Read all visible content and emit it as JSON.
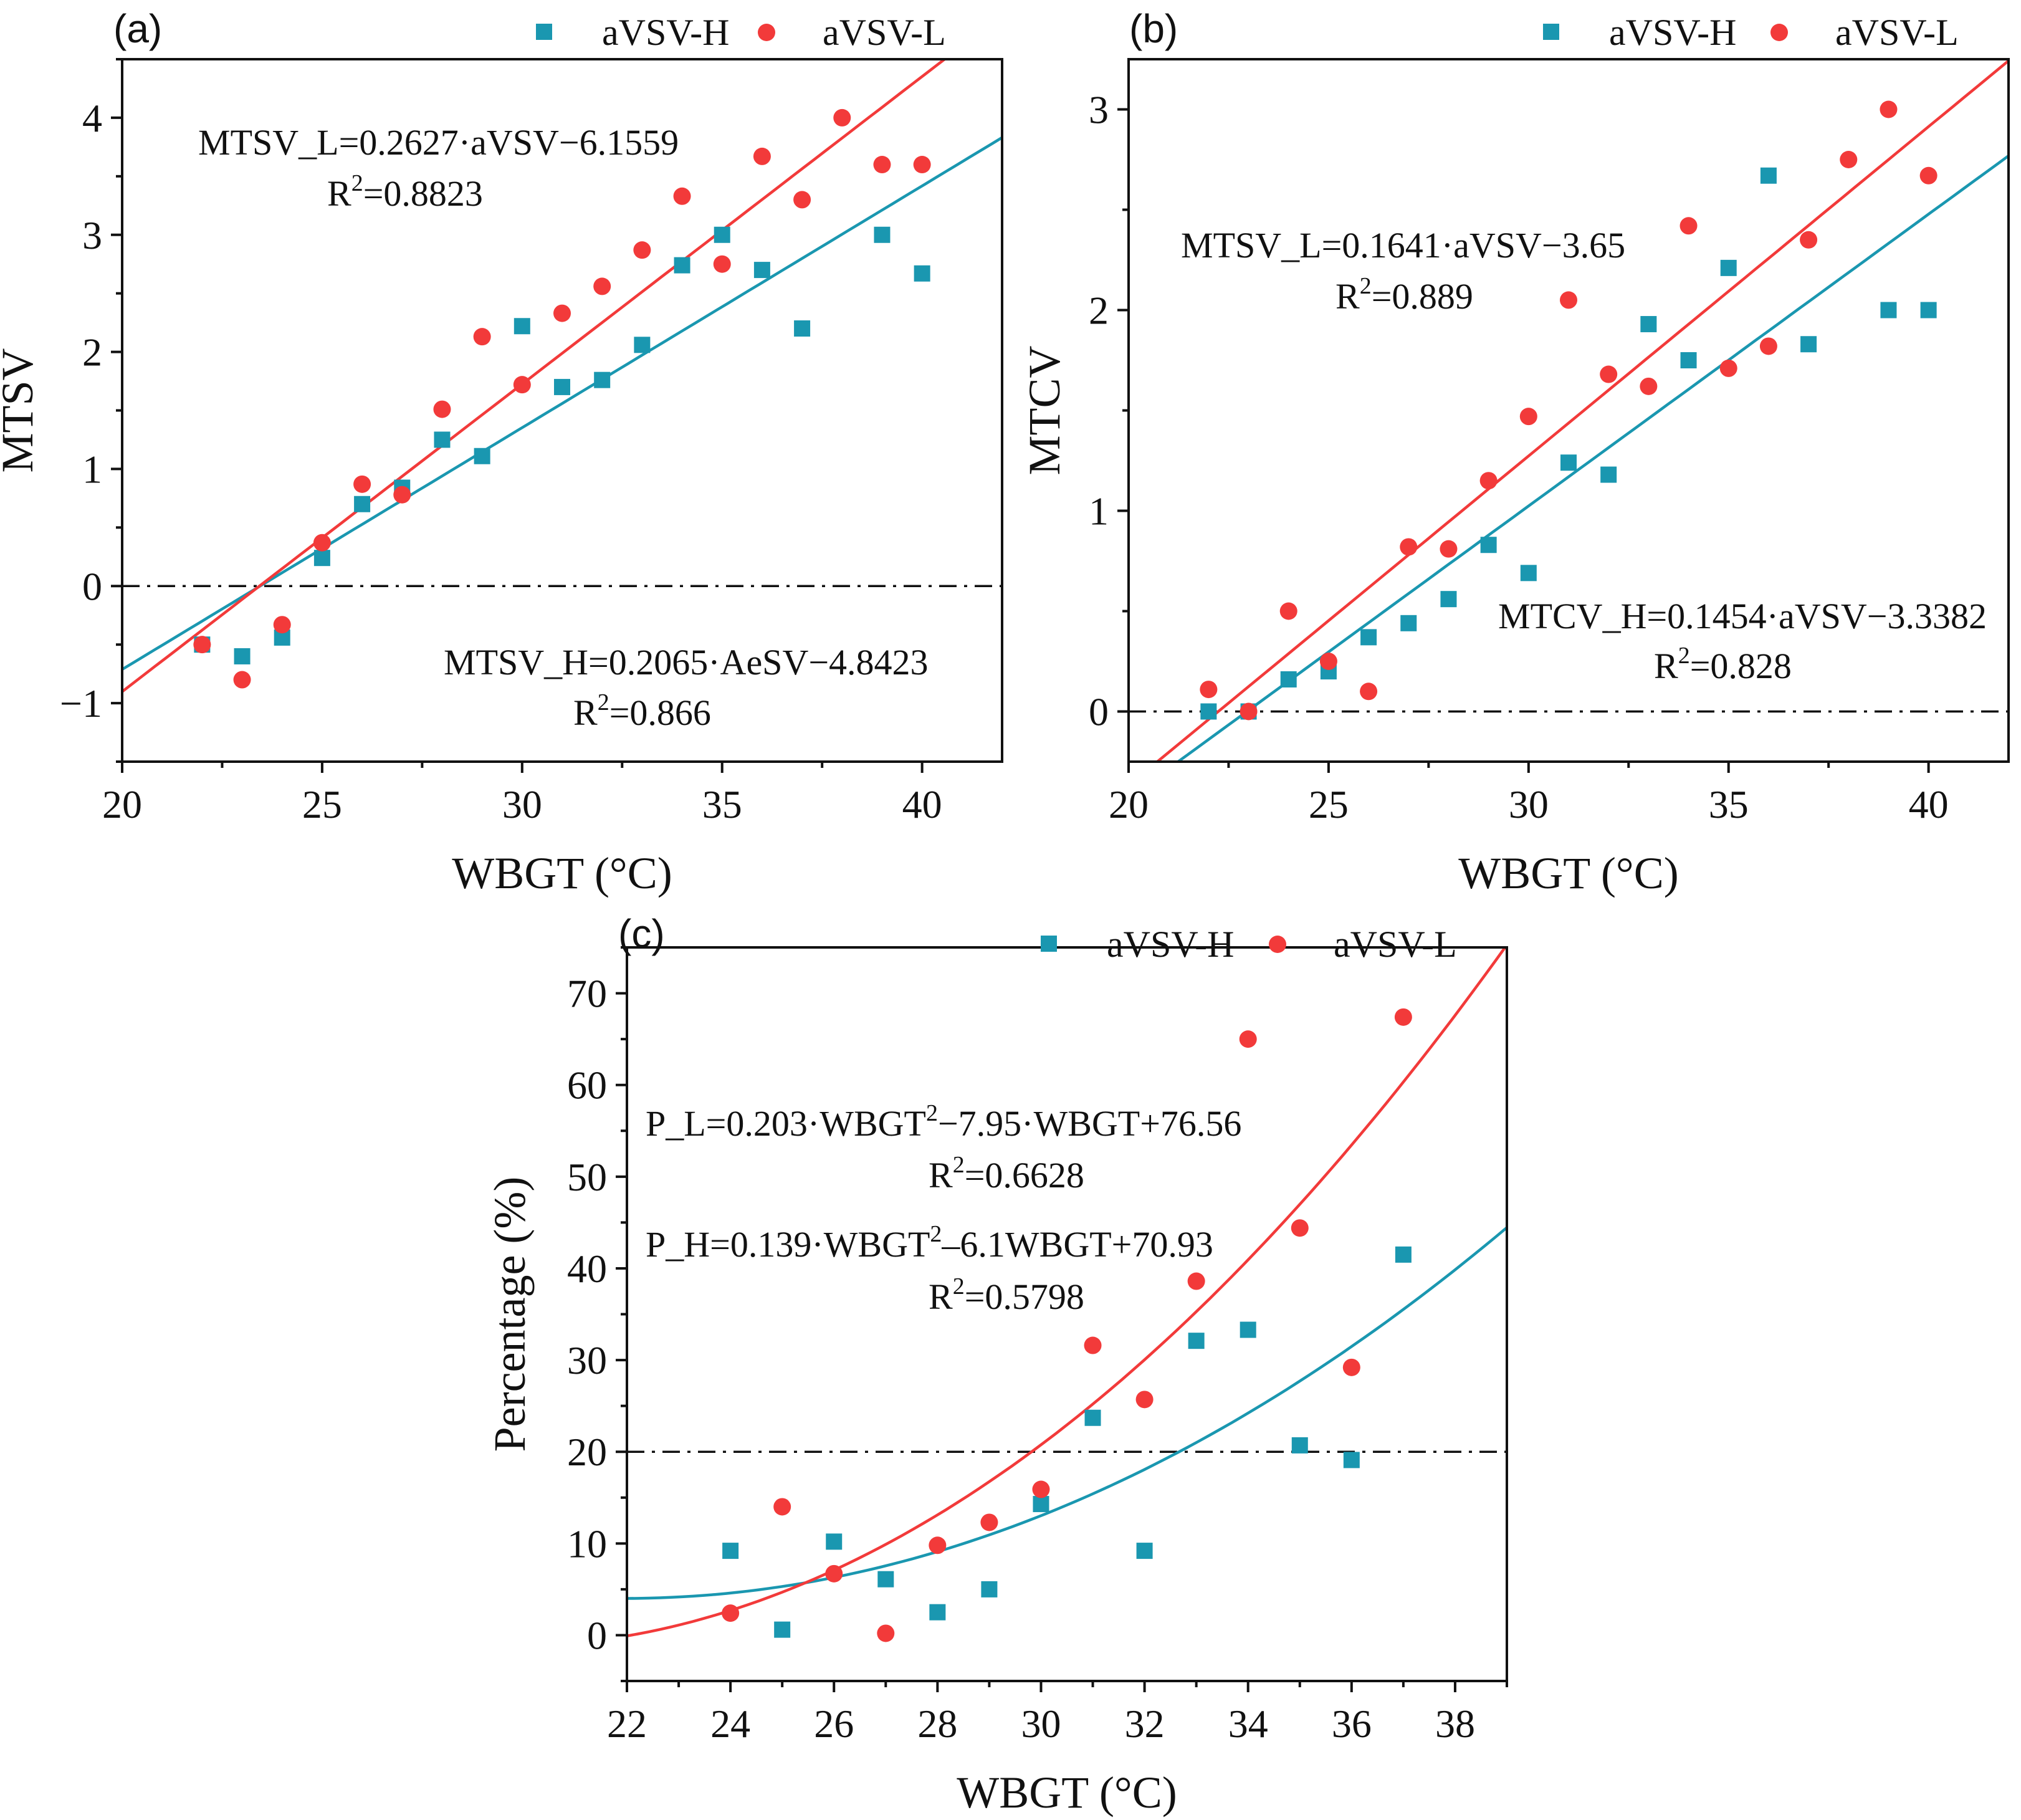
{
  "colors": {
    "H": "#1a97b0",
    "L": "#f23a3a",
    "axis": "#111111"
  },
  "chart_data": [
    {
      "type": "scatter",
      "panel_label": "(a)",
      "xlabel": "WBGT (°C)",
      "ylabel": "MTSV",
      "xlim": [
        20,
        42
      ],
      "ylim": [
        -1.5,
        4.5
      ],
      "xticks": [
        20,
        25,
        30,
        35,
        40
      ],
      "yticks": [
        -1,
        0,
        1,
        2,
        3,
        4
      ],
      "ytick_labels": [
        "−1",
        "0",
        "1",
        "2",
        "3",
        "4"
      ],
      "reference_line": 0,
      "legend": [
        "aVSV-H",
        "aVSV-L"
      ],
      "series": [
        {
          "name": "aVSV-H",
          "marker": "square",
          "x": [
            22,
            23,
            24,
            25,
            26,
            27,
            28,
            29,
            30,
            31,
            32,
            33,
            34,
            35,
            36,
            37,
            39,
            40
          ],
          "y": [
            -0.5,
            -0.6,
            -0.44,
            0.24,
            0.7,
            0.84,
            1.25,
            1.11,
            2.22,
            1.7,
            1.76,
            2.06,
            2.74,
            3.0,
            2.7,
            2.2,
            3.0,
            2.67
          ]
        },
        {
          "name": "aVSV-L",
          "marker": "circle",
          "x": [
            22,
            23,
            24,
            25,
            26,
            27,
            28,
            29,
            30,
            31,
            32,
            33,
            34,
            35,
            36,
            37,
            38,
            39,
            40
          ],
          "y": [
            -0.5,
            -0.8,
            -0.33,
            0.37,
            0.87,
            0.78,
            1.51,
            2.13,
            1.72,
            2.33,
            2.56,
            2.87,
            3.33,
            2.75,
            3.67,
            3.3,
            4.0,
            3.6,
            3.6
          ]
        }
      ],
      "fits": [
        {
          "series": "aVSV-H",
          "kind": "linear",
          "a": 0.2065,
          "b": -4.8423,
          "x0": 20,
          "x1": 42
        },
        {
          "series": "aVSV-L",
          "kind": "linear",
          "a": 0.2627,
          "b": -6.1559,
          "x0": 20,
          "x1": 42
        }
      ],
      "equations": [
        {
          "text": "MTSV_L=0.2627·aVSV−6.1559",
          "r2": "=0.8823"
        },
        {
          "text": "MTSV_H=0.2065·AeSV−4.8423",
          "r2": "=0.866"
        }
      ]
    },
    {
      "type": "scatter",
      "panel_label": "(b)",
      "xlabel": "WBGT (°C)",
      "ylabel": "MTCV",
      "xlim": [
        20,
        42
      ],
      "ylim": [
        -0.25,
        3.25
      ],
      "xticks": [
        20,
        25,
        30,
        35,
        40
      ],
      "yticks": [
        0,
        1,
        2,
        3
      ],
      "ytick_labels": [
        "0",
        "1",
        "2",
        "3"
      ],
      "reference_line": 0,
      "legend": [
        "aVSV-H",
        "aVSV-L"
      ],
      "series": [
        {
          "name": "aVSV-H",
          "marker": "square",
          "x": [
            22,
            23,
            24,
            25,
            26,
            27,
            28,
            29,
            30,
            31,
            32,
            33,
            34,
            35,
            36,
            37,
            39,
            40
          ],
          "y": [
            0.0,
            0.0,
            0.16,
            0.2,
            0.37,
            0.44,
            0.56,
            0.83,
            0.69,
            1.24,
            1.18,
            1.93,
            1.75,
            2.21,
            2.67,
            1.83,
            2.0,
            2.0
          ]
        },
        {
          "name": "aVSV-L",
          "marker": "circle",
          "x": [
            22,
            23,
            24,
            25,
            26,
            27,
            28,
            29,
            30,
            31,
            32,
            33,
            34,
            35,
            36,
            37,
            38,
            39,
            40
          ],
          "y": [
            0.11,
            0.0,
            0.5,
            0.25,
            0.1,
            0.82,
            0.81,
            1.15,
            1.47,
            2.05,
            1.68,
            1.62,
            2.42,
            1.71,
            1.82,
            2.35,
            2.75,
            3.0,
            2.67
          ]
        }
      ],
      "fits": [
        {
          "series": "aVSV-H",
          "kind": "linear",
          "a": 0.1454,
          "b": -3.3382,
          "x0": 20,
          "x1": 42
        },
        {
          "series": "aVSV-L",
          "kind": "linear",
          "a": 0.1641,
          "b": -3.65,
          "x0": 20,
          "x1": 42
        }
      ],
      "equations": [
        {
          "text": "MTSV_L=0.1641·aVSV−3.65",
          "r2": "=0.889"
        },
        {
          "text": "MTCV_H=0.1454·aVSV−3.3382",
          "r2": "=0.828"
        }
      ]
    },
    {
      "type": "scatter",
      "panel_label": "(c)",
      "xlabel": "WBGT (°C)",
      "ylabel": "Percentage (%)",
      "xlim": [
        22,
        39
      ],
      "ylim": [
        -5,
        75
      ],
      "xticks": [
        22,
        24,
        26,
        28,
        30,
        32,
        34,
        36,
        38
      ],
      "yticks": [
        0,
        10,
        20,
        30,
        40,
        50,
        60,
        70
      ],
      "ytick_labels": [
        "0",
        "10",
        "20",
        "30",
        "40",
        "50",
        "60",
        "70"
      ],
      "reference_line": 20,
      "legend": [
        "aVSV-H",
        "aVSV-L"
      ],
      "series": [
        {
          "name": "aVSV-H",
          "marker": "square",
          "x": [
            24,
            25,
            26,
            27,
            28,
            29,
            30,
            31,
            32,
            33,
            34,
            35,
            36,
            37
          ],
          "y": [
            9.2,
            0.6,
            10.2,
            6.1,
            2.5,
            5.0,
            14.3,
            23.7,
            9.2,
            32.1,
            33.3,
            20.7,
            19.1,
            41.5
          ]
        },
        {
          "name": "aVSV-L",
          "marker": "circle",
          "x": [
            24,
            25,
            26,
            27,
            28,
            29,
            30,
            31,
            32,
            33,
            34,
            35,
            36,
            37
          ],
          "y": [
            2.4,
            14.0,
            6.7,
            0.2,
            9.8,
            12.3,
            15.9,
            31.6,
            25.7,
            38.6,
            65.0,
            44.4,
            29.2,
            67.4
          ]
        }
      ],
      "fits": [
        {
          "series": "aVSV-H",
          "kind": "quadratic",
          "a": 0.139,
          "b": -6.1,
          "c": 70.93,
          "x0": 22,
          "x1": 39
        },
        {
          "series": "aVSV-L",
          "kind": "quadratic",
          "a": 0.203,
          "b": -7.95,
          "c": 76.56,
          "x0": 22,
          "x1": 39
        }
      ],
      "equations": [
        {
          "text": "P_L=0.203·WBGT",
          "sup": "2",
          "tail": "−7.95·WBGT+76.56",
          "r2": "=0.6628"
        },
        {
          "text": "P_H=0.139·WBGT",
          "sup": "2",
          "tail": "–6.1WBGT+70.93",
          "r2": "=0.5798"
        }
      ]
    }
  ]
}
